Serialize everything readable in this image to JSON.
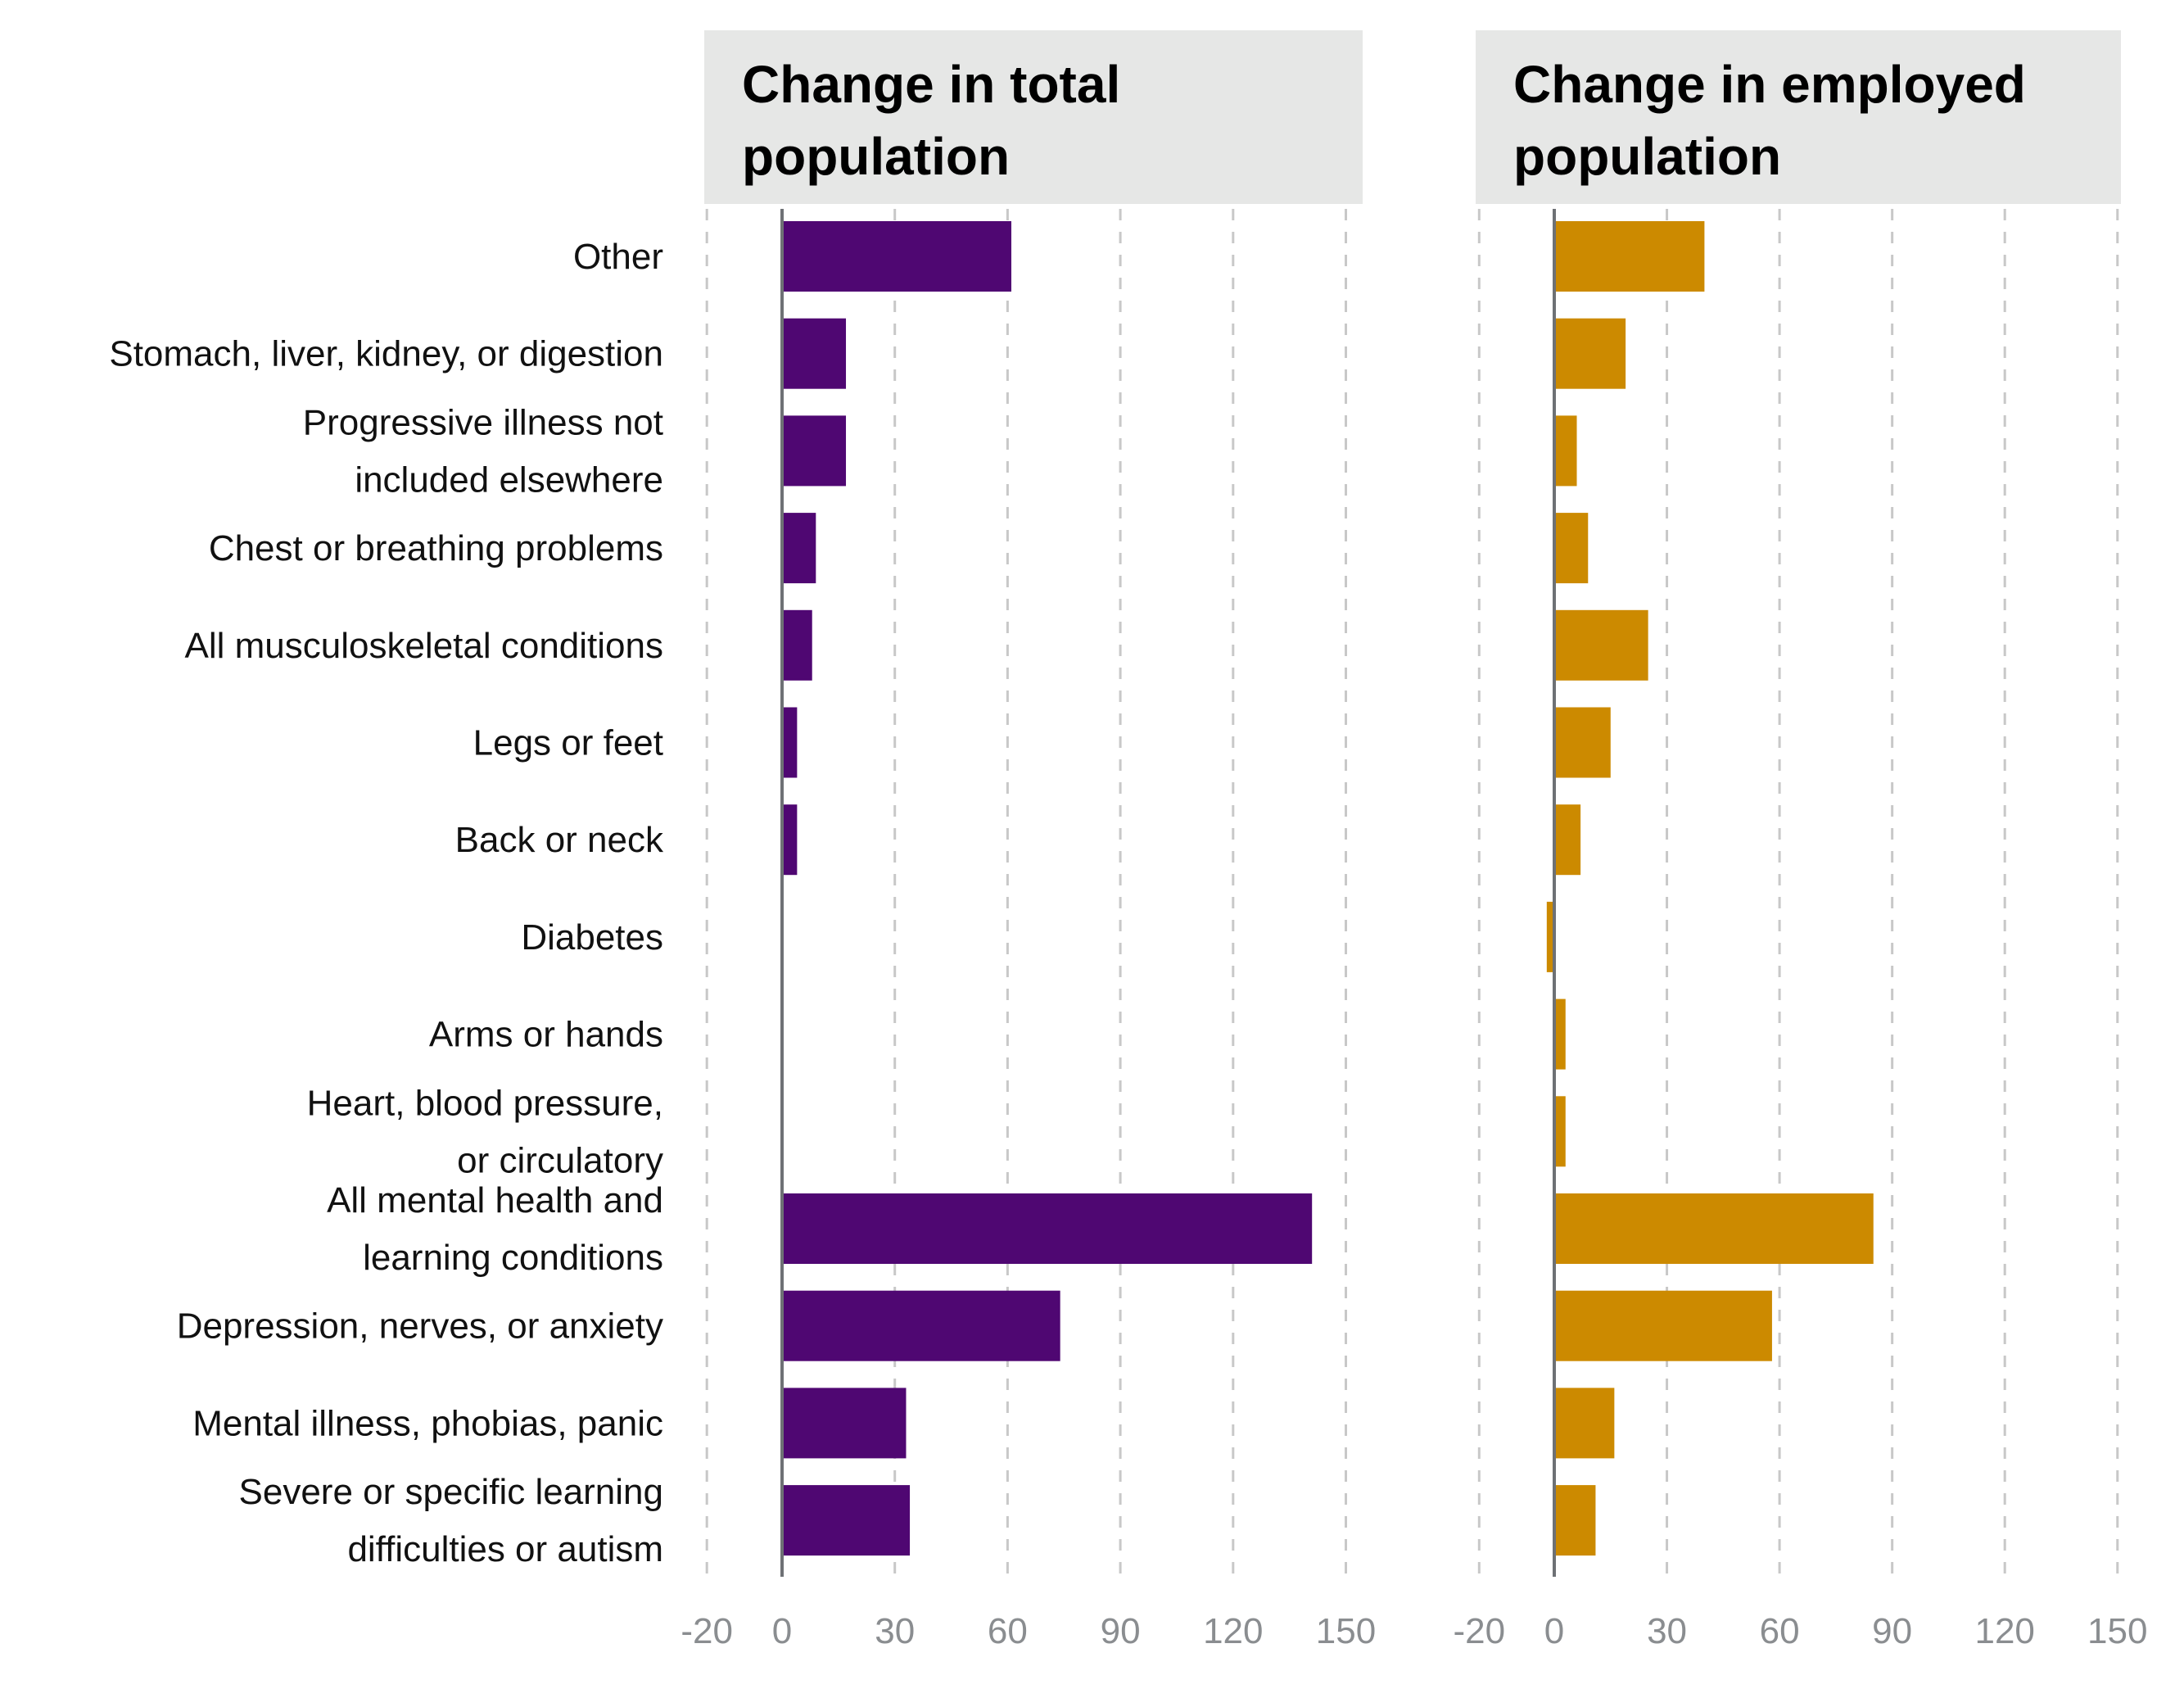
{
  "chart_data": {
    "type": "bar",
    "orientation": "horizontal",
    "categories": [
      [
        "Other"
      ],
      [
        "Stomach, liver, kidney, or digestion"
      ],
      [
        "Progressive illness not",
        "included elsewhere"
      ],
      [
        "Chest or breathing problems"
      ],
      [
        "All musculoskeletal conditions"
      ],
      [
        "Legs or feet"
      ],
      [
        "Back or neck"
      ],
      [
        "Diabetes"
      ],
      [
        "Arms or hands"
      ],
      [
        "Heart, blood pressure,",
        "or circulatory"
      ],
      [
        "All mental health and",
        "learning conditions"
      ],
      [
        "Depression, nerves, or anxiety"
      ],
      [
        "Mental illness, phobias, panic"
      ],
      [
        "Severe or specific learning",
        "difficulties or autism"
      ]
    ],
    "panels": [
      {
        "title": [
          "Change in total",
          "population"
        ],
        "color": "#4f0772",
        "values": [
          61,
          17,
          17,
          9,
          8,
          4,
          4,
          0,
          0,
          0,
          141,
          74,
          33,
          34
        ],
        "xlim": [
          -20,
          150
        ],
        "ticks": [
          -20,
          0,
          30,
          60,
          90,
          120,
          150
        ],
        "tick_labels": [
          "-20",
          "0",
          "30",
          "60",
          "90",
          "120",
          "150"
        ]
      },
      {
        "title": [
          "Change in employed",
          "population"
        ],
        "color": "#cc8a00",
        "values": [
          40,
          19,
          6,
          9,
          25,
          15,
          7,
          -2,
          3,
          3,
          85,
          58,
          16,
          11
        ],
        "xlim": [
          -20,
          150
        ],
        "ticks": [
          -20,
          0,
          30,
          60,
          90,
          120,
          150
        ],
        "tick_labels": [
          "-20",
          "0",
          "30",
          "60",
          "90",
          "120",
          "150"
        ]
      }
    ],
    "grid": true,
    "grid_style": "dashed",
    "header_background": "#e6e7e6",
    "title": "",
    "xlabel": "",
    "ylabel": ""
  }
}
